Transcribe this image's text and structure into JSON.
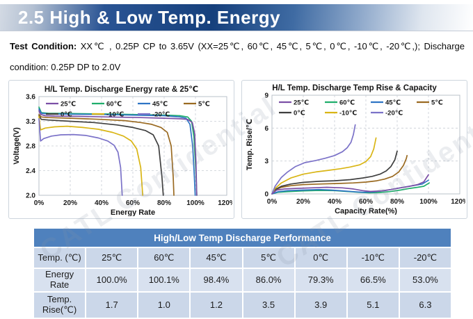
{
  "banner": {
    "title": "2.5 High & Low Temp. Energy"
  },
  "condition": {
    "label": "Test Condition:",
    "text": " XX℃ , 0.25P CP to 3.65V (XX=25℃, 60℃, 45℃, 5℃, 0℃, -10℃, -20℃,);  Discharge condition: 0.25P DP to 2.0V"
  },
  "watermark": {
    "text": "CATL Confidential"
  },
  "colors": {
    "banner_dark_blue": "#16407C",
    "table_header_blue": "#4F81BD",
    "table_row_a": "#CBD7E9",
    "table_row_b": "#D8E1EF",
    "series_25C": "#7B4FA6",
    "series_60C": "#1FAE6B",
    "series_45C": "#2E74C4",
    "series_5C": "#9A6A21",
    "series_0C": "#3F3F3F",
    "series_m10C": "#D9B514",
    "series_m20C": "#7B72C8"
  },
  "chart_data": [
    {
      "type": "line",
      "title": "H/L Temp. Discharge Energy rate & 25℃",
      "xlabel": "Energy Rate",
      "ylabel": "Voltage(V)",
      "xlim": [
        0,
        120
      ],
      "ylim": [
        2.0,
        3.6
      ],
      "xtick_values": [
        0,
        20,
        40,
        60,
        80,
        100,
        120
      ],
      "xtick_labels": [
        "0%",
        "20%",
        "40%",
        "60%",
        "80%",
        "100%",
        "120%"
      ],
      "ytick_values": [
        2.0,
        2.4,
        2.8,
        3.2,
        3.6
      ],
      "ytick_labels": [
        "2.0",
        "2.4",
        "2.8",
        "3.2",
        "3.6"
      ],
      "grid": "dashed",
      "legend_position": "top-inside",
      "legend_rows": [
        [
          "25℃",
          "60℃",
          "45℃",
          "5℃"
        ],
        [
          "0℃",
          "-10℃",
          "-20℃"
        ]
      ],
      "series": [
        {
          "name": "60℃",
          "color": "#1FAE6B",
          "points": [
            [
              0,
              3.43
            ],
            [
              1.5,
              3.34
            ],
            [
              6,
              3.33
            ],
            [
              20,
              3.325
            ],
            [
              40,
              3.32
            ],
            [
              60,
              3.31
            ],
            [
              80,
              3.3
            ],
            [
              90,
              3.29
            ],
            [
              95,
              3.27
            ],
            [
              97.5,
              3.2
            ],
            [
              99,
              2.95
            ],
            [
              100.2,
              2.4
            ],
            [
              100.9,
              2.0
            ]
          ]
        },
        {
          "name": "45℃",
          "color": "#2E74C4",
          "points": [
            [
              0,
              3.4
            ],
            [
              1.5,
              3.33
            ],
            [
              6,
              3.32
            ],
            [
              20,
              3.315
            ],
            [
              40,
              3.31
            ],
            [
              60,
              3.3
            ],
            [
              80,
              3.29
            ],
            [
              90,
              3.27
            ],
            [
              94,
              3.25
            ],
            [
              96.5,
              3.15
            ],
            [
              98.2,
              2.8
            ],
            [
              99.3,
              2.3
            ],
            [
              99.8,
              2.0
            ]
          ]
        },
        {
          "name": "5℃",
          "color": "#9A6A21",
          "points": [
            [
              0,
              3.31
            ],
            [
              1.5,
              3.27
            ],
            [
              6,
              3.26
            ],
            [
              20,
              3.25
            ],
            [
              40,
              3.23
            ],
            [
              55,
              3.21
            ],
            [
              65,
              3.18
            ],
            [
              72,
              3.15
            ],
            [
              78,
              3.1
            ],
            [
              82,
              3.02
            ],
            [
              84.5,
              2.8
            ],
            [
              85.8,
              2.3
            ],
            [
              86.2,
              2.0
            ]
          ]
        },
        {
          "name": "0℃",
          "color": "#3F3F3F",
          "points": [
            [
              0,
              3.29
            ],
            [
              1.5,
              3.23
            ],
            [
              6,
              3.22
            ],
            [
              20,
              3.2
            ],
            [
              35,
              3.18
            ],
            [
              50,
              3.14
            ],
            [
              60,
              3.1
            ],
            [
              68,
              3.05
            ],
            [
              73,
              2.98
            ],
            [
              76.5,
              2.8
            ],
            [
              78.6,
              2.3
            ],
            [
              79.4,
              2.0
            ]
          ]
        },
        {
          "name": "-10℃",
          "color": "#D9B514",
          "points": [
            [
              0,
              3.28
            ],
            [
              1,
              3.06
            ],
            [
              4,
              3.09
            ],
            [
              10,
              3.11
            ],
            [
              18,
              3.12
            ],
            [
              28,
              3.1
            ],
            [
              38,
              3.07
            ],
            [
              47,
              3.02
            ],
            [
              54,
              2.96
            ],
            [
              59,
              2.88
            ],
            [
              62.5,
              2.75
            ],
            [
              65,
              2.45
            ],
            [
              66.3,
              2.0
            ]
          ]
        },
        {
          "name": "-20℃",
          "color": "#7B72C8",
          "points": [
            [
              0,
              3.24
            ],
            [
              1,
              2.88
            ],
            [
              3,
              2.92
            ],
            [
              8,
              2.96
            ],
            [
              14,
              2.98
            ],
            [
              22,
              2.985
            ],
            [
              30,
              2.97
            ],
            [
              38,
              2.93
            ],
            [
              44,
              2.88
            ],
            [
              48,
              2.81
            ],
            [
              50.5,
              2.7
            ],
            [
              52.2,
              2.45
            ],
            [
              53.2,
              2.0
            ]
          ]
        },
        {
          "name": "25℃",
          "color": "#7B4FA6",
          "points": [
            [
              0,
              3.37
            ],
            [
              1,
              3.31
            ],
            [
              4,
              3.29
            ],
            [
              10,
              3.285
            ],
            [
              25,
              3.28
            ],
            [
              45,
              3.27
            ],
            [
              65,
              3.26
            ],
            [
              80,
              3.25
            ],
            [
              90,
              3.24
            ],
            [
              95,
              3.23
            ],
            [
              98,
              3.18
            ],
            [
              99.5,
              3.0
            ],
            [
              100.3,
              2.55
            ],
            [
              100.8,
              2.0
            ]
          ]
        }
      ]
    },
    {
      "type": "line",
      "title": "H/L Temp. Discharge Temp Rise & Capacity",
      "xlabel": "Capacity Rate(%)",
      "ylabel": "Temp. Rise/℃",
      "xlim": [
        0,
        120
      ],
      "ylim": [
        0,
        9
      ],
      "xtick_values": [
        0,
        20,
        40,
        60,
        80,
        100,
        120
      ],
      "xtick_labels": [
        "0%",
        "20%",
        "40%",
        "60%",
        "80%",
        "100%",
        "120%"
      ],
      "ytick_values": [
        0,
        3,
        6,
        9
      ],
      "ytick_labels": [
        "0",
        "3",
        "6",
        "9"
      ],
      "grid": "dashed",
      "legend_position": "top-inside",
      "legend_rows": [
        [
          "25℃",
          "60℃",
          "45℃",
          "5℃"
        ],
        [
          "0℃",
          "-10℃",
          "-20℃"
        ]
      ],
      "series": [
        {
          "name": "60℃",
          "color": "#1FAE6B",
          "points": [
            [
              0,
              0
            ],
            [
              4,
              0.15
            ],
            [
              10,
              0.2
            ],
            [
              20,
              0.28
            ],
            [
              30,
              0.32
            ],
            [
              40,
              0.3
            ],
            [
              48,
              0.22
            ],
            [
              55,
              0.15
            ],
            [
              62,
              0.1
            ],
            [
              68,
              0.12
            ],
            [
              75,
              0.2
            ],
            [
              82,
              0.35
            ],
            [
              88,
              0.5
            ],
            [
              93,
              0.6
            ],
            [
              97,
              0.7
            ],
            [
              100.5,
              1.0
            ]
          ]
        },
        {
          "name": "45℃",
          "color": "#2E74C4",
          "points": [
            [
              0,
              0
            ],
            [
              4,
              0.2
            ],
            [
              10,
              0.3
            ],
            [
              20,
              0.35
            ],
            [
              30,
              0.4
            ],
            [
              38,
              0.35
            ],
            [
              45,
              0.28
            ],
            [
              52,
              0.2
            ],
            [
              58,
              0.15
            ],
            [
              65,
              0.18
            ],
            [
              72,
              0.3
            ],
            [
              80,
              0.5
            ],
            [
              86,
              0.65
            ],
            [
              92,
              0.8
            ],
            [
              96,
              0.9
            ],
            [
              100,
              1.25
            ]
          ]
        },
        {
          "name": "5℃",
          "color": "#9A6A21",
          "points": [
            [
              0,
              0
            ],
            [
              2,
              0.35
            ],
            [
              6,
              0.6
            ],
            [
              12,
              0.75
            ],
            [
              20,
              0.85
            ],
            [
              30,
              0.9
            ],
            [
              42,
              0.95
            ],
            [
              52,
              1.0
            ],
            [
              60,
              1.08
            ],
            [
              67,
              1.2
            ],
            [
              72,
              1.35
            ],
            [
              77,
              1.6
            ],
            [
              81,
              2.0
            ],
            [
              84,
              2.6
            ],
            [
              85.8,
              3.2
            ],
            [
              86.3,
              3.5
            ]
          ]
        },
        {
          "name": "0℃",
          "color": "#3F3F3F",
          "points": [
            [
              0,
              0
            ],
            [
              2,
              0.4
            ],
            [
              6,
              0.7
            ],
            [
              12,
              0.9
            ],
            [
              20,
              1.05
            ],
            [
              30,
              1.15
            ],
            [
              40,
              1.2
            ],
            [
              50,
              1.3
            ],
            [
              58,
              1.45
            ],
            [
              64,
              1.6
            ],
            [
              69,
              1.8
            ],
            [
              73,
              2.1
            ],
            [
              76,
              2.5
            ],
            [
              78.5,
              3.1
            ],
            [
              80,
              3.9
            ]
          ]
        },
        {
          "name": "-10℃",
          "color": "#D9B514",
          "points": [
            [
              0,
              0
            ],
            [
              2,
              0.5
            ],
            [
              6,
              1.0
            ],
            [
              12,
              1.45
            ],
            [
              20,
              1.8
            ],
            [
              28,
              2.0
            ],
            [
              36,
              2.15
            ],
            [
              44,
              2.3
            ],
            [
              50,
              2.45
            ],
            [
              56,
              2.65
            ],
            [
              60,
              2.95
            ],
            [
              63,
              3.4
            ],
            [
              65,
              4.1
            ],
            [
              66.5,
              5.1
            ]
          ]
        },
        {
          "name": "-20℃",
          "color": "#7B72C8",
          "points": [
            [
              0,
              0
            ],
            [
              2,
              0.7
            ],
            [
              6,
              1.5
            ],
            [
              10,
              2.0
            ],
            [
              15,
              2.5
            ],
            [
              21,
              2.85
            ],
            [
              28,
              3.05
            ],
            [
              34,
              3.25
            ],
            [
              40,
              3.5
            ],
            [
              45,
              3.85
            ],
            [
              48,
              4.2
            ],
            [
              50.5,
              4.7
            ],
            [
              52,
              5.4
            ],
            [
              53.2,
              6.3
            ]
          ]
        },
        {
          "name": "25℃",
          "color": "#7B4FA6",
          "points": [
            [
              0,
              0
            ],
            [
              3,
              0.35
            ],
            [
              8,
              0.45
            ],
            [
              15,
              0.5
            ],
            [
              25,
              0.55
            ],
            [
              35,
              0.6
            ],
            [
              45,
              0.55
            ],
            [
              52,
              0.45
            ],
            [
              58,
              0.3
            ],
            [
              63,
              0.22
            ],
            [
              70,
              0.28
            ],
            [
              76,
              0.4
            ],
            [
              82,
              0.55
            ],
            [
              88,
              0.7
            ],
            [
              93,
              0.85
            ],
            [
              97,
              1.1
            ],
            [
              100,
              1.75
            ]
          ]
        }
      ]
    }
  ],
  "table": {
    "title": "High/Low Temp  Discharge Performance",
    "rows": [
      [
        "Temp. (℃)",
        "25℃",
        "60℃",
        "45℃",
        "5℃",
        "0℃",
        "-10℃",
        "-20℃"
      ],
      [
        "Energy Rate",
        "100.0%",
        "100.1%",
        "98.4%",
        "86.0%",
        "79.3%",
        "66.5%",
        "53.0%"
      ],
      [
        "Temp.\nRise(℃)",
        "1.7",
        "1.0",
        "1.2",
        "3.5",
        "3.9",
        "5.1",
        "6.3"
      ]
    ]
  }
}
